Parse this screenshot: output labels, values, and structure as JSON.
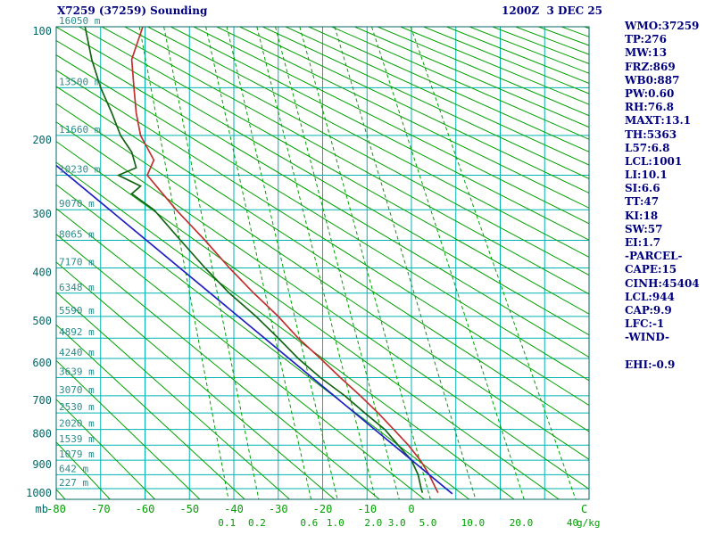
{
  "header": {
    "title_left": "X7259 (37259) Sounding",
    "title_right": "1200Z  3 DEC 25"
  },
  "stats_panel": {
    "lines": [
      "WMO:37259",
      "TP:276",
      "MW:13",
      "FRZ:869",
      "WB0:887",
      "PW:0.60",
      "RH:76.8",
      "MAXT:13.1",
      "TH:5363",
      "L57:6.8",
      "LCL:1001",
      "LI:10.1",
      "SI:6.6",
      "TT:47",
      "KI:18",
      "SW:57",
      "EI:1.7",
      "-PARCEL-",
      "CAPE:15",
      "CINH:45404",
      "LCL:944",
      "CAP:9.9",
      "LFC:-1",
      "-WIND-",
      "",
      "EHI:-0.9"
    ]
  },
  "chart_data": {
    "type": "line",
    "diagram": "stuve-sounding",
    "title": "X7259 (37259) Sounding",
    "x_axis": {
      "label": "C",
      "min": -80,
      "max": 40,
      "grid_step": 10,
      "labeled_ticks": [
        -80,
        -70,
        -60,
        -50,
        -40,
        -30,
        -20,
        -10,
        0
      ]
    },
    "y_axis": {
      "label": "mb",
      "min": 100,
      "max": 1000,
      "scale": "p^0.286",
      "grid_step": 50,
      "labeled_ticks": [
        100,
        200,
        300,
        400,
        500,
        600,
        700,
        800,
        900,
        1000
      ]
    },
    "height_labels": [
      {
        "p": 100,
        "label": "16050 m"
      },
      {
        "p": 150,
        "label": "13500 m"
      },
      {
        "p": 200,
        "label": "11660 m"
      },
      {
        "p": 250,
        "label": "10230 m"
      },
      {
        "p": 300,
        "label": "9070 m"
      },
      {
        "p": 350,
        "label": "8065 m"
      },
      {
        "p": 400,
        "label": "7170 m"
      },
      {
        "p": 450,
        "label": "6348 m"
      },
      {
        "p": 500,
        "label": "5590 m"
      },
      {
        "p": 550,
        "label": "4892 m"
      },
      {
        "p": 600,
        "label": "4240 m"
      },
      {
        "p": 650,
        "label": "3639 m"
      },
      {
        "p": 700,
        "label": "3070 m"
      },
      {
        "p": 750,
        "label": "2530 m"
      },
      {
        "p": 800,
        "label": "2020 m"
      },
      {
        "p": 850,
        "label": "1539 m"
      },
      {
        "p": 900,
        "label": "1079 m"
      },
      {
        "p": 950,
        "label": "642 m"
      },
      {
        "p": 1000,
        "label": "227 m"
      }
    ],
    "mixing_ratio_lines": {
      "unit_label": "g/kg",
      "lines": [
        {
          "value": 0.1,
          "label": "0.1"
        },
        {
          "value": 0.2,
          "label": "0.2"
        },
        {
          "value": 0.6,
          "label": "0.6"
        },
        {
          "value": 1.0,
          "label": "1.0"
        },
        {
          "value": 2.0,
          "label": "2.0"
        },
        {
          "value": 3.0,
          "label": "3.0"
        },
        {
          "value": 5.0,
          "label": "5.0"
        },
        {
          "value": 10.0,
          "label": "10.0"
        },
        {
          "value": 20.0,
          "label": "20.0"
        },
        {
          "value": 40.0,
          "label": "40"
        }
      ]
    },
    "dry_adiabats": {
      "theta_start_k": 193,
      "theta_end_k": 603,
      "theta_step_k": 10
    },
    "series": [
      {
        "name": "temperature",
        "color": "#c03030",
        "points": [
          [
            100,
            -60.5
          ],
          [
            125,
            -63
          ],
          [
            150,
            -62.5
          ],
          [
            175,
            -62
          ],
          [
            200,
            -61
          ],
          [
            230,
            -58
          ],
          [
            250,
            -59.5
          ],
          [
            276,
            -56
          ],
          [
            300,
            -53
          ],
          [
            350,
            -46.5
          ],
          [
            400,
            -41
          ],
          [
            450,
            -35.5
          ],
          [
            500,
            -30
          ],
          [
            550,
            -25.5
          ],
          [
            600,
            -20.5
          ],
          [
            650,
            -16
          ],
          [
            700,
            -11.5
          ],
          [
            750,
            -7.5
          ],
          [
            800,
            -4
          ],
          [
            850,
            -0.7
          ],
          [
            900,
            2
          ],
          [
            950,
            4
          ],
          [
            1000,
            5.5
          ],
          [
            1015,
            6
          ]
        ]
      },
      {
        "name": "dewpoint",
        "color": "#156315",
        "points": [
          [
            100,
            -73.5
          ],
          [
            125,
            -72
          ],
          [
            150,
            -70
          ],
          [
            175,
            -67.5
          ],
          [
            200,
            -65.5
          ],
          [
            220,
            -63
          ],
          [
            240,
            -62
          ],
          [
            250,
            -66
          ],
          [
            265,
            -61
          ],
          [
            276,
            -63
          ],
          [
            300,
            -58
          ],
          [
            350,
            -52
          ],
          [
            400,
            -46.5
          ],
          [
            450,
            -41
          ],
          [
            500,
            -35
          ],
          [
            550,
            -30
          ],
          [
            600,
            -25.5
          ],
          [
            650,
            -20.5
          ],
          [
            700,
            -15
          ],
          [
            750,
            -10.5
          ],
          [
            800,
            -6
          ],
          [
            850,
            -3
          ],
          [
            900,
            0
          ],
          [
            950,
            1.5
          ],
          [
            1000,
            2.2
          ],
          [
            1015,
            2.5
          ]
        ]
      },
      {
        "name": "parcel",
        "color": "#2020c0",
        "points": [
          [
            237,
            -80
          ],
          [
            1019,
            9.2
          ]
        ]
      }
    ],
    "colors": {
      "grid": "#00b2b2",
      "frame": "#006666",
      "dry_adiabat": "#00a000",
      "mixing_ratio": "#00a000",
      "axis_green": "#00a000",
      "pressure_labels": "#006868",
      "height_labels": "#2c8c8c",
      "text_navy": "#000080"
    }
  }
}
